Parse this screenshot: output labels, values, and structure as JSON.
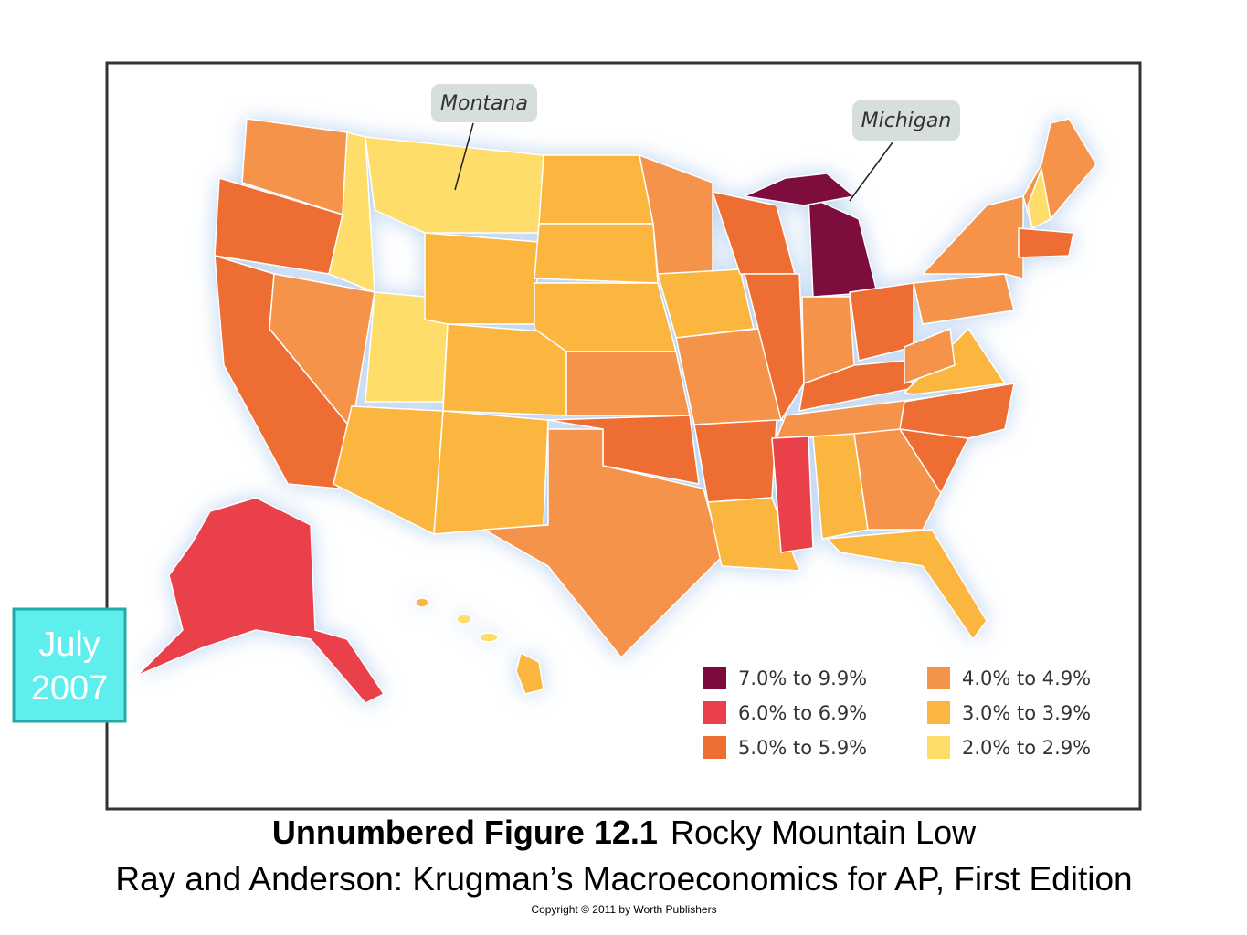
{
  "map": {
    "callouts": [
      "Montana",
      "Michigan"
    ],
    "legend": [
      {
        "label": "7.0% to 9.9%",
        "color": "#7c0a3e"
      },
      {
        "label": "6.0% to 6.9%",
        "color": "#ea404a"
      },
      {
        "label": "5.0% to 5.9%",
        "color": "#ee6d33"
      },
      {
        "label": "4.0% to 4.9%",
        "color": "#f4934a"
      },
      {
        "label": "3.0% to 3.9%",
        "color": "#fbb641"
      },
      {
        "label": "2.0% to 2.9%",
        "color": "#fedd6b"
      }
    ]
  },
  "badge": {
    "lines": [
      "July",
      "2007"
    ]
  },
  "caption": {
    "figure": "Unnumbered Figure 12.1",
    "title": "Rocky Mountain Low",
    "source": "Ray and Anderson: Krugman’s Macroeconomics for AP, First Edition",
    "copyright": "Copyright © 2011 by Worth Publishers"
  }
}
